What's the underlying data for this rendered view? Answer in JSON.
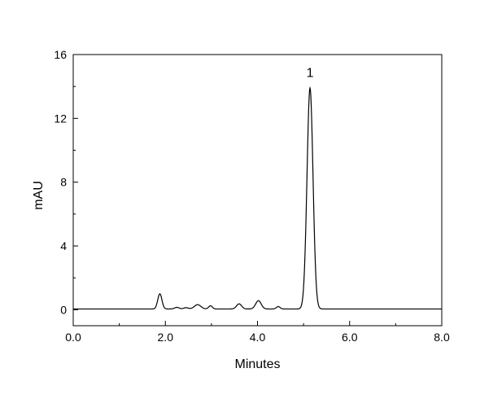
{
  "chart_data": {
    "type": "line",
    "xlabel": "Minutes",
    "ylabel": "mAU",
    "xlim": [
      0,
      8
    ],
    "ylim": [
      -1,
      16
    ],
    "x_ticks": [
      0,
      2,
      4,
      6,
      8
    ],
    "x_tick_labels": [
      "0.0",
      "2.0",
      "4.0",
      "6.0",
      "8.0"
    ],
    "y_ticks": [
      0,
      4,
      8,
      12,
      16
    ],
    "y_tick_labels": [
      "0",
      "4",
      "8",
      "12",
      "16"
    ],
    "grid": false,
    "line_color": "#000000",
    "baseline": 0.05,
    "peaks": [
      {
        "x": 1.88,
        "height": 0.95,
        "width": 0.045
      },
      {
        "x": 2.25,
        "height": 0.1,
        "width": 0.05
      },
      {
        "x": 2.45,
        "height": 0.08,
        "width": 0.05
      },
      {
        "x": 2.7,
        "height": 0.27,
        "width": 0.07
      },
      {
        "x": 2.98,
        "height": 0.2,
        "width": 0.04
      },
      {
        "x": 3.6,
        "height": 0.32,
        "width": 0.055
      },
      {
        "x": 4.02,
        "height": 0.52,
        "width": 0.06
      },
      {
        "x": 4.45,
        "height": 0.15,
        "width": 0.04
      },
      {
        "x": 5.14,
        "height": 13.85,
        "width": 0.065
      }
    ],
    "annotations": [
      {
        "text": "1",
        "x": 5.14,
        "y": 14.6
      }
    ]
  }
}
